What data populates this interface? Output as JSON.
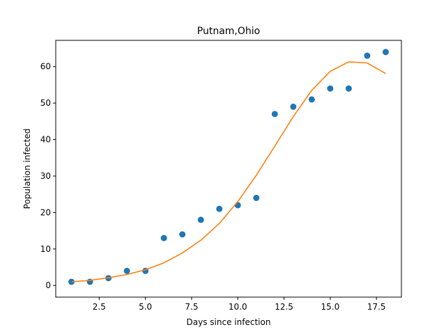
{
  "chart_data": {
    "type": "scatter",
    "title": "Putnam,Ohio",
    "xlabel": "Days since infection",
    "ylabel": "Population infected",
    "xlim": [
      0.15,
      18.85
    ],
    "ylim": [
      -3.2,
      67.2
    ],
    "xticks": [
      2.5,
      5.0,
      7.5,
      10.0,
      12.5,
      15.0,
      17.5
    ],
    "xtick_labels": [
      "2.5",
      "5.0",
      "7.5",
      "10.0",
      "12.5",
      "15.0",
      "17.5"
    ],
    "yticks": [
      0,
      10,
      20,
      30,
      40,
      50,
      60
    ],
    "ytick_labels": [
      "0",
      "10",
      "20",
      "30",
      "40",
      "50",
      "60"
    ],
    "grid": false,
    "series": [
      {
        "kind": "scatter",
        "color": "#1f77b4",
        "x": [
          1,
          2,
          3,
          4,
          5,
          6,
          7,
          8,
          9,
          10,
          11,
          12,
          13,
          14,
          15,
          16,
          17,
          18
        ],
        "y": [
          1,
          1,
          2,
          4,
          4,
          13,
          14,
          18,
          21,
          22,
          24,
          47,
          49,
          51,
          54,
          54,
          63,
          64
        ]
      },
      {
        "kind": "line",
        "color": "#ff7f0e",
        "x": [
          1,
          2,
          3,
          4,
          5,
          6,
          7,
          8,
          9,
          10,
          11,
          12,
          13,
          14,
          15,
          16,
          17,
          18
        ],
        "y": [
          1.0,
          1.4,
          2.1,
          3.0,
          4.3,
          6.2,
          8.9,
          12.4,
          17.0,
          23.0,
          30.2,
          38.2,
          46.3,
          53.5,
          58.7,
          61.3,
          61.0,
          58.1
        ]
      }
    ]
  }
}
